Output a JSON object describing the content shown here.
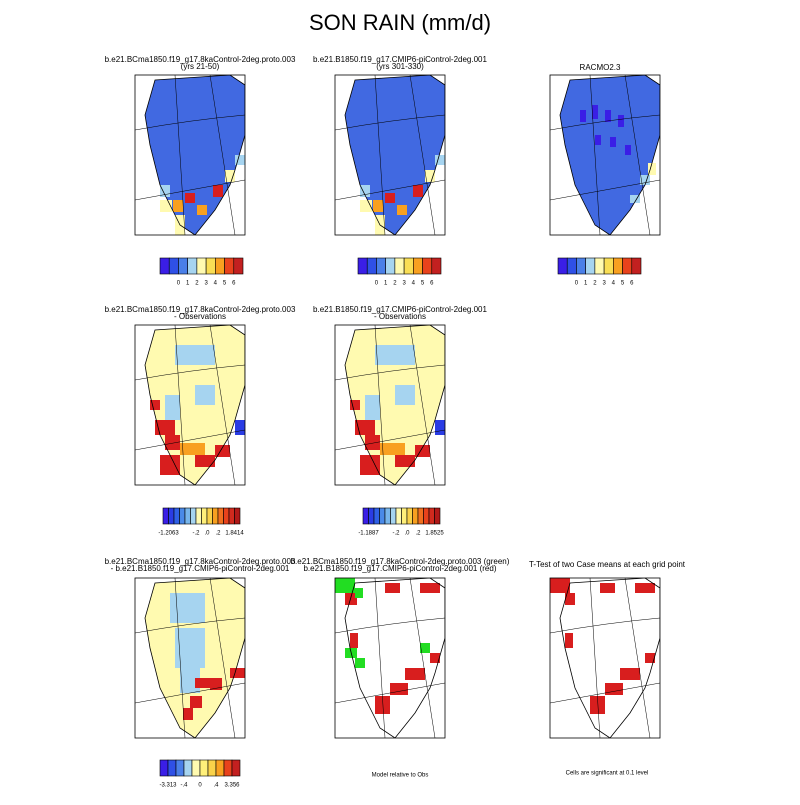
{
  "title": "SON RAIN (mm/d)",
  "panels": [
    {
      "title": [
        "b.e21.BCma1850.f19_g17.8kaControl-2deg.proto.003",
        "(yrs 21-50)"
      ],
      "colorbar": {
        "colors": [
          "#3a1ee6",
          "#2f50e6",
          "#4a7fe8",
          "#a6d4f0",
          "#fffab0",
          "#f9de55",
          "#f8a020",
          "#e8421c",
          "#c32020"
        ],
        "labels": [
          "0",
          "1",
          "2",
          "3",
          "4",
          "5",
          "6"
        ]
      }
    },
    {
      "title": [
        "b.e21.B1850.f19_g17.CMIP6-piControl-2deg.001",
        "(yrs 301-330)"
      ],
      "colorbar": {
        "colors": [
          "#3a1ee6",
          "#2f50e6",
          "#4a7fe8",
          "#a6d4f0",
          "#fffab0",
          "#f9de55",
          "#f8a020",
          "#e8421c",
          "#c32020"
        ],
        "labels": [
          "0",
          "1",
          "2",
          "3",
          "4",
          "5",
          "6"
        ]
      }
    },
    {
      "title": [
        "RACMO2.3"
      ],
      "colorbar": {
        "colors": [
          "#3a1ee6",
          "#2f50e6",
          "#4a7fe8",
          "#a6d4f0",
          "#fffab0",
          "#f9de55",
          "#f8a020",
          "#e8421c",
          "#c32020"
        ],
        "labels": [
          "0",
          "1",
          "2",
          "3",
          "4",
          "5",
          "6"
        ]
      }
    },
    {
      "title": [
        "b.e21.BCma1850.f19_g17.8kaControl-2deg.proto.003",
        "- Observations"
      ],
      "colorbar": {
        "colors": [
          "#3a1ee6",
          "#2a3ce4",
          "#2f60e6",
          "#4a8ae8",
          "#78b6ec",
          "#a6d4f0",
          "#fffab0",
          "#fff07a",
          "#f9d24a",
          "#f8a020",
          "#f07020",
          "#e8421c",
          "#d02a1e",
          "#b01818"
        ],
        "labels": [
          "-1.2063",
          "-.2",
          ".0",
          ".2",
          "1.8414"
        ]
      }
    },
    {
      "title": [
        "b.e21.B1850.f19_g17.CMIP6-piControl-2deg.001",
        "- Observations"
      ],
      "colorbar": {
        "colors": [
          "#3a1ee6",
          "#2a3ce4",
          "#2f60e6",
          "#4a8ae8",
          "#78b6ec",
          "#a6d4f0",
          "#fffab0",
          "#fff07a",
          "#f9d24a",
          "#f8a020",
          "#f07020",
          "#e8421c",
          "#d02a1e",
          "#b01818"
        ],
        "labels": [
          "-1.1887",
          "-.2",
          ".0",
          ".2",
          "1.8525"
        ]
      }
    },
    {
      "title": [
        "b.e21.BCma1850.f19_g17.8kaControl-2deg.proto.003",
        "- b.e21.B1850.f19_g17.CMIP6-piControl-2deg.001"
      ],
      "colorbar": {
        "colors": [
          "#3a1ee6",
          "#2f50e6",
          "#4a7fe8",
          "#a6d4f0",
          "#fffab0",
          "#fff07a",
          "#f9d24a",
          "#f8a020",
          "#e8421c",
          "#c32020"
        ],
        "labels": [
          "-3.313",
          "-.4",
          "0",
          ".4",
          "3.356"
        ]
      }
    },
    {
      "title": [
        "b.e21.BCma1850.f19_g17.8kaControl-2deg.proto.003 (green)",
        "b.e21.B1850.f19_g17.CMIP6-piControl-2deg.001 (red)"
      ],
      "note": "Model relative to Obs"
    },
    {
      "title": [
        "T-Test of two Case means at each grid point"
      ],
      "note": "Cells are significant at 0.1 level"
    }
  ]
}
